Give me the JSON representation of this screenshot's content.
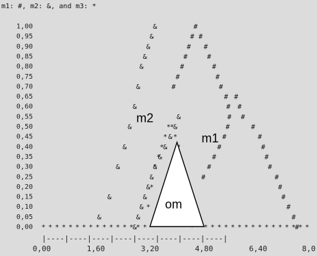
{
  "legend_text": "m1: #, m2: &, and m3: *",
  "chart_data": {
    "type": "scatter",
    "title": "m1: #, m2: &, and m3: *",
    "xlim": [
      0,
      8
    ],
    "ylim": [
      0,
      1
    ],
    "x_ticks": [
      "0,00",
      "1,60",
      "3,20",
      "4,80",
      "6,40",
      "8,0"
    ],
    "y_ticks": [
      "0,00",
      "0,05",
      "0,10",
      "0,15",
      "0,20",
      "0,25",
      "0,30",
      "0,35",
      "0,40",
      "0,45",
      "0,50",
      "0,55",
      "0,60",
      "0,65",
      "0,70",
      "0,75",
      "0,80",
      "0,85",
      "0,90",
      "0,95",
      "1,00"
    ],
    "axis_line_text": "|----|----|----|----|----|----|----|----|",
    "series": [
      {
        "marker": "#",
        "x": [
          4.78,
          4.95,
          5.1,
          5.25,
          5.4,
          5.5,
          5.55,
          5.52,
          5.45,
          5.3,
          5.2,
          5.1,
          4.95,
          4.85,
          4.7,
          4.55,
          4.45,
          4.35,
          4.25,
          4.15,
          4.02,
          3.9,
          5.75,
          5.85,
          5.95,
          6.25,
          6.45,
          6.55,
          6.65,
          6.75,
          6.95,
          7.05,
          7.15,
          7.3,
          7.45,
          7.55
        ],
        "y": [
          0.25,
          0.3,
          0.35,
          0.4,
          0.45,
          0.5,
          0.55,
          0.6,
          0.65,
          0.7,
          0.75,
          0.8,
          0.85,
          0.9,
          0.95,
          1.0,
          0.95,
          0.9,
          0.85,
          0.8,
          0.75,
          0.7,
          0.65,
          0.6,
          0.55,
          0.5,
          0.45,
          0.4,
          0.35,
          0.3,
          0.25,
          0.2,
          0.15,
          0.1,
          0.05,
          0.0
        ]
      },
      {
        "marker": "&",
        "x": [
          2.75,
          2.85,
          2.95,
          3.05,
          3.15,
          3.25,
          3.35,
          3.5,
          3.65,
          3.8,
          3.95,
          4.05
        ],
        "y": [
          0.0,
          0.05,
          0.1,
          0.15,
          0.2,
          0.25,
          0.3,
          0.35,
          0.4,
          0.45,
          0.5,
          0.55
        ]
      },
      {
        "marker": "&",
        "x": [
          1.7,
          2.0,
          2.25,
          2.45,
          2.6,
          2.75,
          2.85,
          2.95,
          3.05,
          3.15,
          3.25,
          3.35
        ],
        "y": [
          0.05,
          0.15,
          0.3,
          0.4,
          0.5,
          0.6,
          0.7,
          0.8,
          0.85,
          0.9,
          0.95,
          1.0
        ]
      },
      {
        "marker": "*",
        "x": [
          0.05,
          0.25,
          0.45,
          0.65,
          0.85,
          1.05,
          1.25,
          1.45,
          1.65,
          1.85,
          2.05,
          2.25,
          2.45,
          2.65,
          2.85,
          3.05,
          3.15,
          3.25,
          3.35,
          3.45,
          3.55,
          3.65,
          3.75,
          3.85,
          3.95,
          4.05,
          4.15,
          4.25,
          4.35,
          4.45,
          4.85,
          5.05,
          5.25,
          5.45,
          5.65,
          5.85,
          6.05,
          6.25,
          6.45,
          6.65,
          6.85,
          7.05,
          7.25,
          7.45,
          7.65,
          7.85
        ],
        "y": [
          0.0,
          0.0,
          0.0,
          0.0,
          0.0,
          0.0,
          0.0,
          0.0,
          0.0,
          0.0,
          0.0,
          0.0,
          0.0,
          0.0,
          0.0,
          0.0,
          0.1,
          0.2,
          0.3,
          0.35,
          0.4,
          0.45,
          0.5,
          0.5,
          0.45,
          0.4,
          0.3,
          0.2,
          0.1,
          0.0,
          0.0,
          0.0,
          0.0,
          0.0,
          0.0,
          0.0,
          0.0,
          0.0,
          0.0,
          0.0,
          0.0,
          0.0,
          0.0,
          0.0,
          0.0,
          0.0
        ]
      }
    ],
    "annotations": [
      {
        "text": "m2",
        "x": 3.05,
        "y": 0.52
      },
      {
        "text": "m1",
        "x": 4.98,
        "y": 0.42
      },
      {
        "text": "om",
        "x": 3.9,
        "y": 0.09
      }
    ],
    "triangle": {
      "x": [
        3.2,
        4.0,
        4.8
      ],
      "y": [
        0.0,
        0.42,
        0.0
      ]
    }
  }
}
